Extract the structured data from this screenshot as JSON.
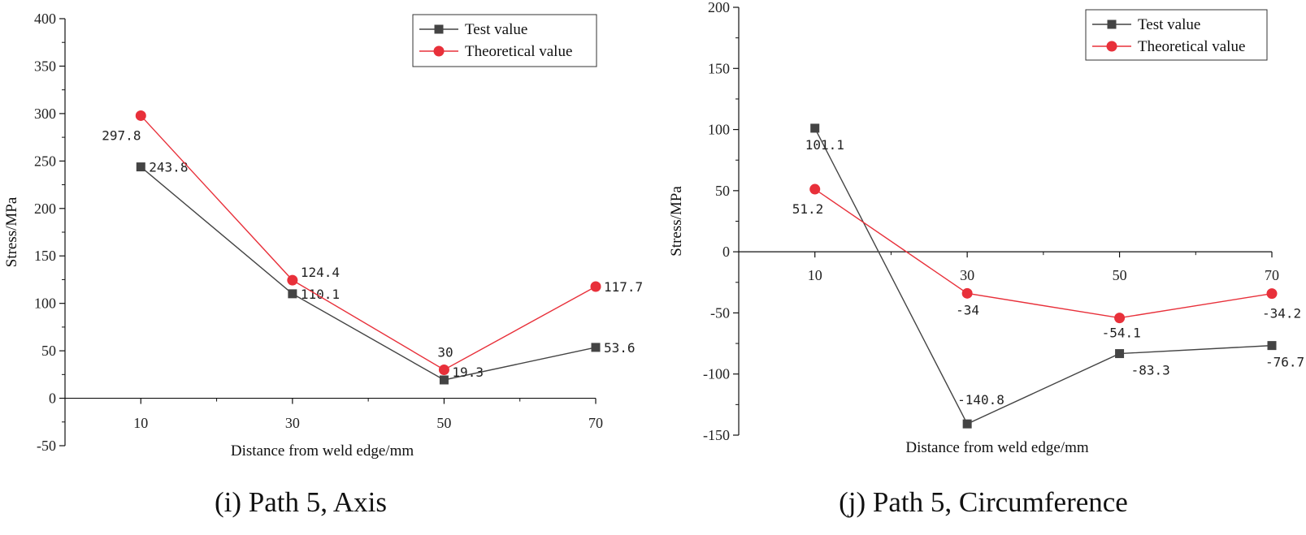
{
  "chart_data": [
    {
      "type": "line",
      "caption": "(i) Path 5, Axis",
      "xlabel": "Distance from weld edge/mm",
      "ylabel": "Stress/MPa",
      "categories": [
        "10",
        "30",
        "50",
        "70"
      ],
      "x": [
        10,
        30,
        50,
        70
      ],
      "xlim": [
        0,
        70
      ],
      "ylim": [
        -50,
        400
      ],
      "yticks": [
        -50,
        0,
        50,
        100,
        150,
        200,
        250,
        300,
        350,
        400
      ],
      "legend_position": "top-right",
      "grid": false,
      "series": [
        {
          "name": "Test value",
          "marker": "square",
          "color": "#444444",
          "values": [
            243.8,
            110.1,
            19.3,
            53.6
          ],
          "labels": [
            "243.8",
            "110.1",
            "19.3",
            "53.6"
          ]
        },
        {
          "name": "Theoretical value",
          "marker": "circle",
          "color": "#e8303a",
          "values": [
            297.8,
            124.4,
            30,
            117.7
          ],
          "labels": [
            "297.8",
            "124.4",
            "30",
            "117.7"
          ]
        }
      ]
    },
    {
      "type": "line",
      "caption": "(j) Path 5, Circumference",
      "xlabel": "Distance from weld edge/mm",
      "ylabel": "Stress/MPa",
      "categories": [
        "10",
        "30",
        "50",
        "70"
      ],
      "x": [
        10,
        30,
        50,
        70
      ],
      "xlim": [
        0,
        70
      ],
      "ylim": [
        -150,
        200
      ],
      "yticks": [
        -150,
        -100,
        -50,
        0,
        50,
        100,
        150,
        200
      ],
      "legend_position": "top-right",
      "grid": false,
      "series": [
        {
          "name": "Test value",
          "marker": "square",
          "color": "#444444",
          "values": [
            101.1,
            -140.8,
            -83.3,
            -76.7
          ],
          "labels": [
            "101.1",
            "-140.8",
            "-83.3",
            "-76.7"
          ]
        },
        {
          "name": "Theoretical value",
          "marker": "circle",
          "color": "#e8303a",
          "values": [
            51.2,
            -34,
            -54.1,
            -34.2
          ],
          "labels": [
            "51.2",
            "-34",
            "-54.1",
            "-34.2"
          ]
        }
      ]
    }
  ]
}
